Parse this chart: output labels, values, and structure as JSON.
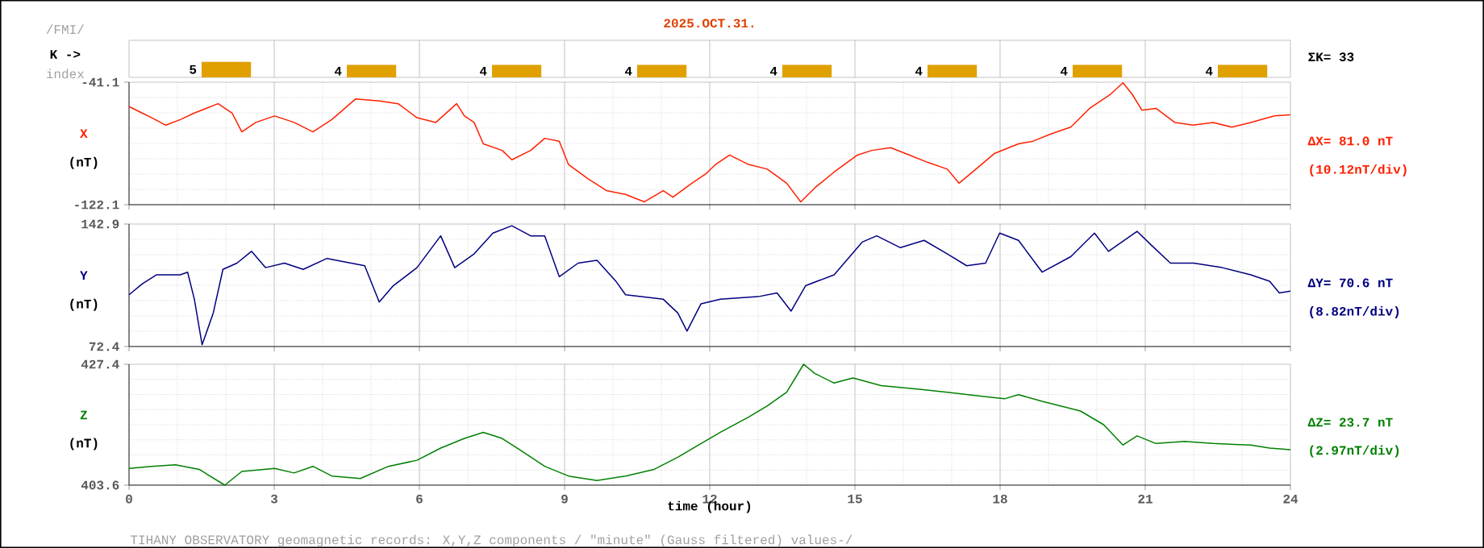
{
  "chart_data": [
    {
      "type": "bar",
      "title": "2025.OCT.31.",
      "categories": [
        null,
        null,
        null,
        null,
        null,
        null,
        null,
        null
      ],
      "values": [
        5,
        4,
        4,
        4,
        4,
        4,
        4,
        4
      ],
      "color": "#e0a000",
      "data_labels": true,
      "tick_labels": false,
      "annotations": [
        "/FMI/",
        "K ->",
        "index",
        "ΣK= 33"
      ]
    },
    {
      "type": "line",
      "ylabel": "X",
      "color": "#ff2000",
      "xlim": [
        0,
        24
      ],
      "xticks": [
        0,
        3,
        6,
        9,
        12,
        15,
        18,
        21,
        24
      ],
      "ylim": [
        -122.1,
        -41.1
      ],
      "yticks": [
        -122.1,
        -41.1
      ],
      "grid": true,
      "tick_labels": "y",
      "annotations": [
        "(nT)",
        "ΔX= 81.0 nT",
        "(10.12nT/div)"
      ],
      "x": [
        0,
        0.27,
        0.47,
        0.76,
        1.06,
        1.35,
        1.84,
        2.13,
        2.33,
        2.62,
        3.01,
        3.41,
        3.8,
        4.19,
        4.68,
        5.17,
        5.56,
        5.95,
        6.34,
        6.77,
        6.93,
        7.13,
        7.32,
        7.71,
        7.91,
        8.3,
        8.59,
        8.89,
        9.08,
        9.48,
        9.87,
        10.26,
        10.65,
        11.04,
        11.24,
        11.63,
        11.92,
        12.12,
        12.41,
        12.8,
        13.19,
        13.59,
        13.88,
        14.17,
        14.57,
        15.05,
        15.35,
        15.74,
        16.13,
        16.52,
        16.91,
        17.15,
        17.5,
        17.89,
        18.38,
        18.68,
        19.07,
        19.46,
        19.85,
        20.28,
        20.54,
        20.73,
        20.93,
        21.22,
        21.61,
        21.99,
        22.4,
        22.79,
        23.18,
        23.67,
        24
      ],
      "values": [
        -57.2,
        -61.5,
        -64.6,
        -69.5,
        -65.8,
        -61.5,
        -55.3,
        -61.5,
        -73.9,
        -67.7,
        -63.4,
        -67.7,
        -73.9,
        -65.8,
        -52.2,
        -53.5,
        -55.3,
        -64.6,
        -67.7,
        -55.3,
        -63.4,
        -67.7,
        -81.9,
        -86.2,
        -92.4,
        -86.2,
        -78.2,
        -80.1,
        -95.5,
        -104.8,
        -112.8,
        -115.3,
        -120.2,
        -112.8,
        -117.1,
        -107.9,
        -101.7,
        -95.5,
        -89.3,
        -95.5,
        -98.6,
        -107.9,
        -120.2,
        -111.0,
        -100.5,
        -89.3,
        -86.2,
        -84.4,
        -89.3,
        -94.3,
        -98.6,
        -107.9,
        -98.6,
        -88.1,
        -81.9,
        -80.1,
        -75.1,
        -70.8,
        -58.4,
        -49.1,
        -41.5,
        -49.1,
        -59.6,
        -58.4,
        -67.7,
        -69.5,
        -67.7,
        -70.8,
        -67.7,
        -63.4,
        -62.7
      ]
    },
    {
      "type": "line",
      "ylabel": "Y",
      "color": "#000080",
      "xlim": [
        0,
        24
      ],
      "xticks": [
        0,
        3,
        6,
        9,
        12,
        15,
        18,
        21,
        24
      ],
      "ylim": [
        72.4,
        142.9
      ],
      "yticks": [
        72.4,
        142.9
      ],
      "grid": true,
      "tick_labels": "y",
      "annotations": [
        "(nT)",
        "ΔY= 70.6 nT",
        "(8.82nT/div)"
      ],
      "x": [
        0,
        0.27,
        0.57,
        1.06,
        1.21,
        1.35,
        1.51,
        1.74,
        1.94,
        2.23,
        2.53,
        2.82,
        3.21,
        3.6,
        4.09,
        4.87,
        5.17,
        5.46,
        5.95,
        6.44,
        6.73,
        7.13,
        7.52,
        7.91,
        8.3,
        8.59,
        8.89,
        9.28,
        9.67,
        10.06,
        10.26,
        11.04,
        11.34,
        11.53,
        11.82,
        12.22,
        13.0,
        13.39,
        13.68,
        13.98,
        14.57,
        15.15,
        15.45,
        15.94,
        16.43,
        16.91,
        17.31,
        17.7,
        17.99,
        18.38,
        18.87,
        19.46,
        19.95,
        20.24,
        20.83,
        21.12,
        21.52,
        22.0,
        22.59,
        23.18,
        23.57,
        23.77,
        24
      ],
      "values": [
        102.2,
        108.4,
        113.7,
        113.7,
        115.2,
        99.6,
        73.4,
        91.7,
        116.8,
        120.4,
        127.2,
        117.8,
        120.4,
        116.8,
        123.1,
        118.9,
        98.0,
        107.4,
        117.8,
        136.1,
        117.8,
        125.7,
        137.7,
        141.9,
        136.1,
        136.1,
        112.6,
        120.4,
        122.0,
        110.0,
        102.2,
        99.6,
        91.7,
        81.3,
        97.0,
        99.6,
        101.1,
        103.2,
        92.8,
        107.4,
        113.7,
        132.5,
        136.1,
        129.3,
        133.5,
        125.7,
        118.9,
        120.4,
        137.7,
        133.5,
        115.2,
        124.1,
        137.7,
        127.2,
        138.7,
        130.9,
        120.4,
        120.4,
        117.8,
        113.7,
        110.0,
        103.2,
        104.3
      ]
    },
    {
      "type": "line",
      "ylabel": "Z",
      "xlabel": "time (hour)",
      "color": "#008000",
      "xlim": [
        0,
        24
      ],
      "xticks": [
        0,
        3,
        6,
        9,
        12,
        15,
        18,
        21,
        24
      ],
      "ylim": [
        403.6,
        427.4
      ],
      "yticks": [
        403.6,
        427.4
      ],
      "grid": true,
      "annotations": [
        "(nT)",
        "ΔZ= 23.7 nT",
        "(2.97nT/div)",
        "TIHANY OBSERVATORY   geomagnetic records:  X,Y,Z  components   / \"minute\" (Gauss filtered) values-/"
      ],
      "x": [
        0,
        0.47,
        0.96,
        1.45,
        1.98,
        2.33,
        3.01,
        3.41,
        3.8,
        4.19,
        4.78,
        5.36,
        5.95,
        6.44,
        6.93,
        7.32,
        7.71,
        8.1,
        8.59,
        9.08,
        9.67,
        10.26,
        10.85,
        11.34,
        11.82,
        12.22,
        12.8,
        13.19,
        13.59,
        13.94,
        14.17,
        14.57,
        14.96,
        15.54,
        16.33,
        16.91,
        17.7,
        18.09,
        18.38,
        18.87,
        19.66,
        20.14,
        20.54,
        20.83,
        21.22,
        21.81,
        22.4,
        23.18,
        23.57,
        24
      ],
      "values": [
        406.9,
        407.3,
        407.6,
        406.7,
        403.6,
        406.3,
        406.9,
        406.0,
        407.3,
        405.4,
        404.9,
        407.3,
        408.5,
        410.9,
        412.8,
        414.0,
        412.8,
        410.4,
        407.3,
        405.4,
        404.5,
        405.4,
        406.7,
        409.1,
        411.8,
        414.0,
        417.0,
        419.2,
        421.9,
        427.4,
        425.6,
        423.7,
        424.7,
        423.2,
        422.5,
        421.9,
        421.0,
        420.6,
        421.4,
        420.1,
        418.2,
        415.5,
        411.5,
        413.3,
        411.8,
        412.2,
        411.8,
        411.5,
        410.9,
        410.6
      ]
    }
  ]
}
